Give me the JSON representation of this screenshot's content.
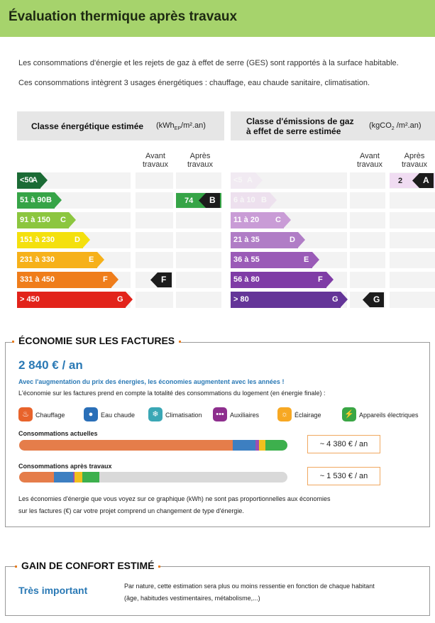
{
  "header": {
    "title": "Évaluation thermique après travaux"
  },
  "intro": {
    "line1": "Les consommations d'énergie et les rejets de gaz à effet de serre (GES) sont rapportés à la surface habitable.",
    "line2": "Ces consommations intègrent 3 usages énergétiques : chauffage, eau chaude sanitaire, climatisation."
  },
  "energy": {
    "title": "Classe énergétique estimée",
    "unit_main": "(kWh",
    "unit_sub": "EP",
    "unit_tail": "/m².an)",
    "col_before": "Avant travaux",
    "col_after": "Après travaux",
    "classes": [
      {
        "range": "<50",
        "letter": "A",
        "color": "#1b6b35"
      },
      {
        "range": "51 à 90",
        "letter": "B",
        "color": "#36a447"
      },
      {
        "range": "91 à 150",
        "letter": "C",
        "color": "#8cc63f"
      },
      {
        "range": "151 à 230",
        "letter": "D",
        "color": "#f4e00e"
      },
      {
        "range": "231 à 330",
        "letter": "E",
        "color": "#f6b11a"
      },
      {
        "range": "331 à 450",
        "letter": "F",
        "color": "#ef7d1b"
      },
      {
        "range": "> 450",
        "letter": "G",
        "color": "#e2231a"
      }
    ],
    "before": {
      "letter": "F",
      "value": ""
    },
    "after": {
      "letter": "B",
      "value": "74"
    }
  },
  "ges": {
    "title": "Classe d'émissions de gaz à effet de serre estimée",
    "unit_main": "(kgCO",
    "unit_sub": "2",
    "unit_tail": " /m².an)",
    "col_before": "Avant travaux",
    "col_after": "Après travaux",
    "classes": [
      {
        "range": "<5",
        "letter": "A",
        "color": "#f0dcf2"
      },
      {
        "range": "6 à 10",
        "letter": "B",
        "color": "#e2bfe6"
      },
      {
        "range": "11 à 20",
        "letter": "C",
        "color": "#c99cd6"
      },
      {
        "range": "21 à 35",
        "letter": "D",
        "color": "#b07dc6"
      },
      {
        "range": "36 à 55",
        "letter": "E",
        "color": "#9a5bb7"
      },
      {
        "range": "56 à 80",
        "letter": "F",
        "color": "#7f3ca6"
      },
      {
        "range": "> 80",
        "letter": "G",
        "color": "#643598"
      }
    ],
    "before": {
      "letter": "G",
      "value": ""
    },
    "after": {
      "letter": "A",
      "value": "2"
    }
  },
  "savings": {
    "section_title": "ÉCONOMIE SUR LES FACTURES",
    "amount": "2 840 € / an",
    "note_blue": "Avec l'augmentation du prix des énergies, les économies augmentent avec les années !",
    "note_dark": "L'économie sur les factures prend en compte la totalité des consommations du logement (en énergie finale) :",
    "legend": [
      {
        "label": "Chauffage",
        "color": "#e8632b",
        "icon": "flame-icon",
        "glyph": "♨"
      },
      {
        "label": "Eau chaude",
        "color": "#2a6fb8",
        "icon": "water-drop-icon",
        "glyph": "●"
      },
      {
        "label": "Climatisation",
        "color": "#3aa7b5",
        "icon": "snowflake-icon",
        "glyph": "❄"
      },
      {
        "label": "Auxiliaires",
        "color": "#8e2f8e",
        "icon": "dots-icon",
        "glyph": "•••"
      },
      {
        "label": "Éclairage",
        "color": "#f7a823",
        "icon": "bulb-icon",
        "glyph": "☼"
      },
      {
        "label": "Appareils électriques",
        "color": "#3aa645",
        "icon": "plug-icon",
        "glyph": "⚡"
      }
    ],
    "current_label": "Consommations actuelles",
    "current_amount": "~ 4 380 € / an",
    "current_shares": [
      {
        "share": 0.795,
        "color": "#e57d4a"
      },
      {
        "share": 0.085,
        "color": "#3d7fc1"
      },
      {
        "share": 0.014,
        "color": "#9b4fb3"
      },
      {
        "share": 0.025,
        "color": "#f2c01e"
      },
      {
        "share": 0.081,
        "color": "#3db04d"
      }
    ],
    "after_label": "Consommations après travaux",
    "after_amount": "~ 1 530 € / an",
    "after_shares": [
      {
        "share": 0.13,
        "color": "#e57d4a"
      },
      {
        "share": 0.07,
        "color": "#3d7fc1"
      },
      {
        "share": 0.006,
        "color": "#9b4fb3"
      },
      {
        "share": 0.03,
        "color": "#f2c01e"
      },
      {
        "share": 0.063,
        "color": "#3db04d"
      }
    ],
    "disclaimer1": "Les économies d'énergie que vous voyez sur ce graphique (kWh) ne sont pas proportionnelles aux économies",
    "disclaimer2": "sur les factures (€) car votre projet comprend un changement de type d'énergie."
  },
  "comfort": {
    "section_title": "GAIN DE CONFORT ESTIMÉ",
    "value": "Très important",
    "text1": "Par nature, cette estimation sera plus ou moins ressentie en fonction de chaque habitant",
    "text2": "(âge, habitudes vestimentaires, métabolisme,...)"
  }
}
